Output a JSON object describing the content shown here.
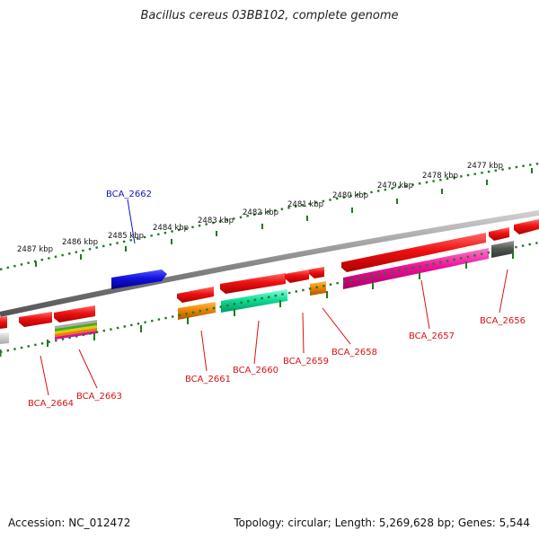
{
  "title": "Bacillus cereus 03BB102, complete genome",
  "accession": "Accession: NC_012472",
  "topology": "Topology: circular; Length: 5,269,628 bp; Genes: 5,544",
  "ruler": [
    "2487 kbp",
    "2486 kbp",
    "2485 kbp",
    "2484 kbp",
    "2483 kbp",
    "2482 kbp",
    "2481 kbp",
    "2480 kbp",
    "2479 kbp",
    "2478 kbp",
    "2477 kbp"
  ],
  "gene_labels": [
    "BCA_2662",
    "BCA_2664",
    "BCA_2663",
    "BCA_2661",
    "BCA_2660",
    "BCA_2659",
    "BCA_2658",
    "BCA_2657",
    "BCA_2656"
  ],
  "colors": {
    "label_red": "#dd1111",
    "label_blue": "#1111cc",
    "ruler_green": "#1e7a1e",
    "backbone": "#888888",
    "cds_red": "#ee1111",
    "gene_blue": "#1111dd",
    "orange": "#ee8800",
    "teal": "#11dd99",
    "magenta": "#ee1199",
    "dark_gray": "#555555"
  }
}
